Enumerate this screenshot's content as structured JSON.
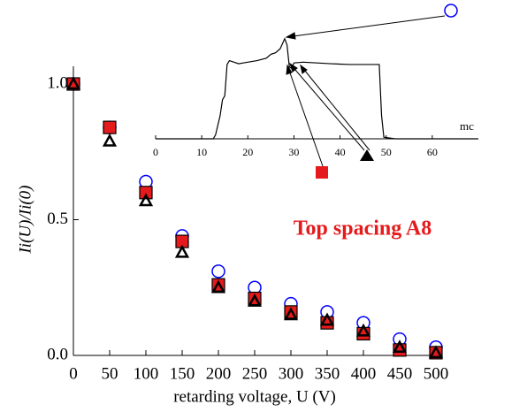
{
  "chart_data": [
    {
      "type": "scatter",
      "x_label": "retarding voltage, U (V)",
      "y_label": "Ii(U)/Ii(0)",
      "annotation": "Top spacing A8",
      "x": [
        0,
        50,
        100,
        150,
        200,
        250,
        300,
        350,
        400,
        450,
        500
      ],
      "series": [
        {
          "marker": "circle",
          "color": "#0000ff",
          "values": [
            1.0,
            0.84,
            0.64,
            0.44,
            0.31,
            0.25,
            0.19,
            0.16,
            0.12,
            0.06,
            0.03
          ]
        },
        {
          "marker": "square",
          "color": "#e41a1c",
          "values": [
            1.0,
            0.84,
            0.6,
            0.42,
            0.26,
            0.21,
            0.16,
            0.12,
            0.08,
            0.02,
            0.01
          ]
        },
        {
          "marker": "triangle",
          "color": "#000000",
          "values": [
            1.0,
            0.79,
            0.57,
            0.38,
            0.25,
            0.2,
            0.15,
            0.13,
            0.09,
            0.03,
            0.01
          ]
        }
      ],
      "xlim": [
        0,
        500
      ],
      "xticks": [
        0,
        50,
        100,
        150,
        200,
        250,
        300,
        350,
        400,
        450,
        500
      ],
      "ylim": [
        0,
        1.0
      ],
      "yticks": [
        {
          "value": 0,
          "label": "0.0"
        },
        0.5,
        {
          "value": 1,
          "label": "1.0"
        }
      ]
    },
    {
      "type": "line",
      "x_label": "mc",
      "x": [
        0,
        12.5,
        13,
        14,
        14.5,
        15,
        15.5,
        16,
        17,
        18,
        19,
        20,
        22,
        24,
        25,
        26,
        27,
        28,
        28.5,
        29,
        29.5,
        30,
        32,
        35,
        38,
        42,
        46,
        48.5,
        49,
        49.5,
        52,
        70
      ],
      "series": [
        {
          "color": "#000000",
          "values": [
            0,
            0,
            0.05,
            0.3,
            0.5,
            0.55,
            0.95,
            1.0,
            0.98,
            0.96,
            0.97,
            0.98,
            1.0,
            1.03,
            1.08,
            1.1,
            1.15,
            1.28,
            1.2,
            0.92,
            0.9,
            0.97,
            0.98,
            0.97,
            0.96,
            0.95,
            0.95,
            0.95,
            0.3,
            0.02,
            0,
            0
          ]
        }
      ],
      "xlim": [
        0,
        70
      ],
      "xticks": [
        0,
        10,
        20,
        30,
        40,
        50,
        60
      ],
      "ylim": [
        0,
        1.3
      ]
    }
  ]
}
